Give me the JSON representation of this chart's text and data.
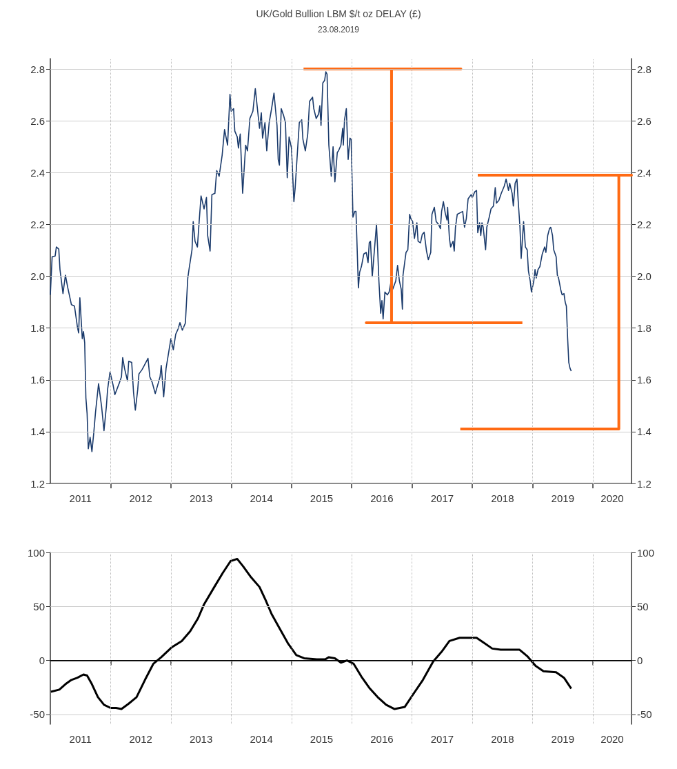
{
  "chart_data": [
    {
      "type": "line",
      "title": "UK/Gold Bullion LBM $/t oz DELAY (£)",
      "subtitle": "23.08.2019",
      "xlim": [
        2011,
        2020.64
      ],
      "xticks": [
        {
          "value": 2011.5,
          "label": "2011"
        },
        {
          "value": 2012,
          "label": null
        },
        {
          "value": 2012.5,
          "label": "2012"
        },
        {
          "value": 2013,
          "label": null
        },
        {
          "value": 2013.5,
          "label": "2013"
        },
        {
          "value": 2014,
          "label": null
        },
        {
          "value": 2014.5,
          "label": "2014"
        },
        {
          "value": 2015,
          "label": null
        },
        {
          "value": 2015.5,
          "label": "2015"
        },
        {
          "value": 2016,
          "label": null
        },
        {
          "value": 2016.5,
          "label": "2016"
        },
        {
          "value": 2017,
          "label": null
        },
        {
          "value": 2017.5,
          "label": "2017"
        },
        {
          "value": 2018,
          "label": null
        },
        {
          "value": 2018.5,
          "label": "2018"
        },
        {
          "value": 2019,
          "label": null
        },
        {
          "value": 2019.5,
          "label": "2019"
        },
        {
          "value": 2020,
          "label": null
        },
        {
          "value": 2020.32,
          "label": "2020"
        }
      ],
      "ylim": [
        1.2,
        2.84
      ],
      "yticks": [
        1.2,
        1.4,
        1.6,
        1.8,
        {
          "value": 2,
          "label": "2.0"
        },
        2.2,
        2.4,
        2.6,
        2.8
      ],
      "y2lim": [
        1.2,
        2.84
      ],
      "y2ticks": [
        1.2,
        1.4,
        1.6,
        1.8,
        {
          "value": 2,
          "label": "2.0"
        },
        2.2,
        2.4,
        2.6,
        2.8
      ],
      "grid": true,
      "series": [
        {
          "color": "#1a3a6b",
          "x": [
            2011.0,
            2011.03,
            2011.08,
            2011.1,
            2011.14,
            2011.16,
            2011.21,
            2011.25,
            2011.29,
            2011.35,
            2011.4,
            2011.45,
            2011.47,
            2011.49,
            2011.53,
            2011.55,
            2011.57,
            2011.59,
            2011.61,
            2011.63,
            2011.66,
            2011.69,
            2011.72,
            2011.75,
            2011.8,
            2011.85,
            2011.89,
            2011.93,
            2011.95,
            2011.99,
            2012.04,
            2012.07,
            2012.14,
            2012.18,
            2012.2,
            2012.23,
            2012.28,
            2012.3,
            2012.35,
            2012.38,
            2012.41,
            2012.45,
            2012.47,
            2012.52,
            2012.56,
            2012.62,
            2012.65,
            2012.69,
            2012.74,
            2012.78,
            2012.82,
            2012.84,
            2012.88,
            2012.92,
            2012.97,
            2013.0,
            2013.04,
            2013.08,
            2013.12,
            2013.15,
            2013.19,
            2013.24,
            2013.28,
            2013.3,
            2013.35,
            2013.37,
            2013.4,
            2013.44,
            2013.47,
            2013.5,
            2013.55,
            2013.59,
            2013.61,
            2013.65,
            2013.68,
            2013.73,
            2013.76,
            2013.8,
            2013.85,
            2013.89,
            2013.94,
            2013.98,
            2014.0,
            2014.04,
            2014.06,
            2014.1,
            2014.12,
            2014.15,
            2014.19,
            2014.24,
            2014.27,
            2014.31,
            2014.36,
            2014.4,
            2014.43,
            2014.47,
            2014.5,
            2014.52,
            2014.56,
            2014.59,
            2014.63,
            2014.67,
            2014.71,
            2014.76,
            2014.78,
            2014.8,
            2014.83,
            2014.87,
            2014.9,
            2014.93,
            2014.96,
            2015.0,
            2015.04,
            2015.06,
            2015.1,
            2015.13,
            2015.17,
            2015.19,
            2015.23,
            2015.27,
            2015.3,
            2015.35,
            2015.37,
            2015.41,
            2015.45,
            2015.47,
            2015.49,
            2015.52,
            2015.55,
            2015.57,
            2015.59,
            2015.62,
            2015.64,
            2015.66,
            2015.69,
            2015.72,
            2015.76,
            2015.78,
            2015.82,
            2015.85,
            2015.86,
            2015.88,
            2015.91,
            2015.94,
            2015.97,
            2015.99,
            2016.02,
            2016.05,
            2016.07,
            2016.11,
            2016.13,
            2016.16,
            2016.2,
            2016.24,
            2016.27,
            2016.29,
            2016.31,
            2016.34,
            2016.41,
            2016.43,
            2016.45,
            2016.48,
            2016.5,
            2016.52,
            2016.55,
            2016.59,
            2016.62,
            2016.65,
            2016.68,
            2016.73,
            2016.76,
            2016.79,
            2016.82,
            2016.84,
            2016.85,
            2016.9,
            2016.93,
            2016.96,
            2016.98,
            2017.01,
            2017.04,
            2017.08,
            2017.1,
            2017.14,
            2017.17,
            2017.2,
            2017.24,
            2017.27,
            2017.31,
            2017.33,
            2017.37,
            2017.4,
            2017.44,
            2017.47,
            2017.49,
            2017.52,
            2017.55,
            2017.58,
            2017.59,
            2017.62,
            2017.64,
            2017.68,
            2017.7,
            2017.72,
            2017.75,
            2017.79,
            2017.84,
            2017.87,
            2017.9,
            2017.93,
            2017.98,
            2018.0,
            2018.04,
            2018.07,
            2018.09,
            2018.12,
            2018.14,
            2018.16,
            2018.18,
            2018.22,
            2018.24,
            2018.28,
            2018.31,
            2018.35,
            2018.38,
            2018.4,
            2018.44,
            2018.48,
            2018.53,
            2018.56,
            2018.6,
            2018.62,
            2018.66,
            2018.68,
            2018.71,
            2018.74,
            2018.76,
            2018.79,
            2018.81,
            2018.83,
            2018.85,
            2018.88,
            2018.91,
            2018.93,
            2018.96,
            2018.98,
            2019.02,
            2019.04,
            2019.06,
            2019.09,
            2019.12,
            2019.16,
            2019.2,
            2019.22,
            2019.25,
            2019.28,
            2019.3,
            2019.33,
            2019.35,
            2019.39,
            2019.41,
            2019.43,
            2019.47,
            2019.49,
            2019.52,
            2019.54,
            2019.56,
            2019.58,
            2019.6,
            2019.62,
            2019.64
          ],
          "values": [
            1.928,
            2.075,
            2.078,
            2.113,
            2.105,
            2.026,
            1.933,
            2.004,
            1.955,
            1.89,
            1.885,
            1.803,
            1.781,
            1.917,
            1.759,
            1.786,
            1.743,
            1.53,
            1.47,
            1.334,
            1.378,
            1.323,
            1.394,
            1.476,
            1.585,
            1.498,
            1.404,
            1.498,
            1.563,
            1.63,
            1.581,
            1.543,
            1.585,
            1.612,
            1.686,
            1.645,
            1.596,
            1.672,
            1.667,
            1.552,
            1.483,
            1.563,
            1.623,
            1.639,
            1.656,
            1.683,
            1.612,
            1.59,
            1.547,
            1.579,
            1.612,
            1.656,
            1.534,
            1.645,
            1.716,
            1.759,
            1.716,
            1.776,
            1.797,
            1.821,
            1.792,
            1.819,
            1.993,
            2.026,
            2.102,
            2.211,
            2.135,
            2.113,
            2.216,
            2.31,
            2.26,
            2.304,
            2.157,
            2.097,
            2.315,
            2.32,
            2.408,
            2.386,
            2.467,
            2.566,
            2.506,
            2.702,
            2.637,
            2.647,
            2.56,
            2.538,
            2.495,
            2.549,
            2.32,
            2.506,
            2.484,
            2.609,
            2.637,
            2.724,
            2.658,
            2.571,
            2.631,
            2.533,
            2.593,
            2.484,
            2.593,
            2.647,
            2.707,
            2.582,
            2.451,
            2.429,
            2.647,
            2.62,
            2.593,
            2.38,
            2.538,
            2.495,
            2.288,
            2.337,
            2.484,
            2.593,
            2.604,
            2.528,
            2.484,
            2.549,
            2.675,
            2.691,
            2.647,
            2.609,
            2.626,
            2.658,
            2.582,
            2.746,
            2.756,
            2.789,
            2.78,
            2.506,
            2.446,
            2.386,
            2.5,
            2.364,
            2.478,
            2.484,
            2.506,
            2.571,
            2.506,
            2.604,
            2.647,
            2.451,
            2.533,
            2.528,
            2.228,
            2.25,
            2.25,
            1.955,
            2.015,
            2.037,
            2.086,
            2.092,
            2.053,
            2.129,
            2.135,
            1.999,
            2.2,
            2.102,
            1.982,
            1.857,
            1.906,
            1.835,
            1.939,
            1.928,
            1.939,
            1.977,
            1.95,
            1.982,
            2.042,
            1.982,
            1.95,
            1.873,
            2.004,
            2.092,
            2.102,
            2.239,
            2.222,
            2.211,
            2.146,
            2.206,
            2.135,
            2.129,
            2.162,
            2.17,
            2.097,
            2.064,
            2.092,
            2.239,
            2.266,
            2.211,
            2.2,
            2.184,
            2.25,
            2.288,
            2.244,
            2.217,
            2.266,
            2.146,
            2.113,
            2.135,
            2.097,
            2.189,
            2.239,
            2.244,
            2.25,
            2.189,
            2.222,
            2.299,
            2.315,
            2.304,
            2.326,
            2.331,
            2.168,
            2.206,
            2.157,
            2.206,
            2.189,
            2.102,
            2.189,
            2.228,
            2.26,
            2.271,
            2.342,
            2.282,
            2.293,
            2.32,
            2.348,
            2.375,
            2.331,
            2.359,
            2.32,
            2.271,
            2.359,
            2.375,
            2.293,
            2.189,
            2.069,
            2.14,
            2.211,
            2.113,
            2.102,
            2.021,
            1.982,
            1.939,
            1.982,
            2.026,
            1.993,
            2.026,
            2.037,
            2.086,
            2.113,
            2.092,
            2.157,
            2.184,
            2.189,
            2.157,
            2.102,
            2.075,
            2.004,
            1.993,
            1.944,
            1.928,
            1.933,
            1.9,
            1.884,
            1.764,
            1.667,
            1.645,
            1.634
          ]
        },
        {
          "color": "#ff6a13",
          "x": [
            2015.2,
            2017.81,
            2016.66,
            2016.66,
            2016.24,
            2018.83
          ],
          "values": [
            2.8,
            2.8,
            2.8,
            1.82,
            1.82,
            1.82
          ]
        },
        {
          "color": "#ff6a13",
          "x": [
            2018.09,
            2020.64,
            2020.43,
            2020.43,
            2017.8
          ],
          "values": [
            2.39,
            2.39,
            2.39,
            1.41,
            1.41
          ]
        }
      ]
    },
    {
      "type": "line",
      "xlim": [
        2011,
        2020.64
      ],
      "xticks": [
        {
          "value": 2011.5,
          "label": "2011"
        },
        {
          "value": 2012,
          "label": null
        },
        {
          "value": 2012.5,
          "label": "2012"
        },
        {
          "value": 2013,
          "label": null
        },
        {
          "value": 2013.5,
          "label": "2013"
        },
        {
          "value": 2014,
          "label": null
        },
        {
          "value": 2014.5,
          "label": "2014"
        },
        {
          "value": 2015,
          "label": null
        },
        {
          "value": 2015.5,
          "label": "2015"
        },
        {
          "value": 2016,
          "label": null
        },
        {
          "value": 2016.5,
          "label": "2016"
        },
        {
          "value": 2017,
          "label": null
        },
        {
          "value": 2017.5,
          "label": "2017"
        },
        {
          "value": 2018,
          "label": null
        },
        {
          "value": 2018.5,
          "label": "2018"
        },
        {
          "value": 2019,
          "label": null
        },
        {
          "value": 2019.5,
          "label": "2019"
        },
        {
          "value": 2020,
          "label": null
        },
        {
          "value": 2020.32,
          "label": "2020"
        }
      ],
      "ylim": [
        -59,
        100
      ],
      "yticks": [
        -50,
        0,
        50,
        100
      ],
      "y2lim": [
        -59,
        100
      ],
      "y2ticks": [
        -50,
        0,
        50,
        100
      ],
      "grid": true,
      "ref_lines": [
        {
          "axis": "y",
          "value": 0,
          "color": "#000000"
        }
      ],
      "series": [
        {
          "color": "#000000",
          "x": [
            2011.01,
            2011.15,
            2011.25,
            2011.35,
            2011.45,
            2011.55,
            2011.61,
            2011.69,
            2011.79,
            2011.89,
            2012.0,
            2012.09,
            2012.18,
            2012.3,
            2012.43,
            2012.57,
            2012.71,
            2012.84,
            2013.01,
            2013.18,
            2013.32,
            2013.45,
            2013.55,
            2013.72,
            2013.86,
            2013.99,
            2014.1,
            2014.2,
            2014.33,
            2014.47,
            2014.57,
            2014.67,
            2014.81,
            2014.94,
            2015.08,
            2015.21,
            2015.42,
            2015.56,
            2015.62,
            2015.72,
            2015.82,
            2015.92,
            2016.03,
            2016.16,
            2016.3,
            2016.43,
            2016.57,
            2016.71,
            2016.88,
            2017.01,
            2017.18,
            2017.35,
            2017.49,
            2017.62,
            2017.79,
            2018.07,
            2018.2,
            2018.33,
            2018.47,
            2018.61,
            2018.78,
            2018.91,
            2019.05,
            2019.18,
            2019.39,
            2019.52,
            2019.64
          ],
          "values": [
            -29,
            -27,
            -22,
            -18,
            -16,
            -13,
            -14,
            -22,
            -34,
            -41,
            -44,
            -44,
            -45,
            -40,
            -34,
            -18,
            -3,
            3,
            12,
            18,
            27,
            39,
            52,
            68,
            81,
            92,
            94,
            87,
            77,
            68,
            56,
            43,
            29,
            16,
            5,
            2,
            1,
            1,
            3,
            2,
            -2,
            0,
            -3,
            -15,
            -26,
            -34,
            -41,
            -45,
            -43,
            -32,
            -18,
            -1,
            8,
            18,
            21,
            21,
            16,
            11,
            10,
            10,
            10,
            4,
            -5,
            -10,
            -11,
            -16,
            -26
          ]
        }
      ]
    }
  ]
}
